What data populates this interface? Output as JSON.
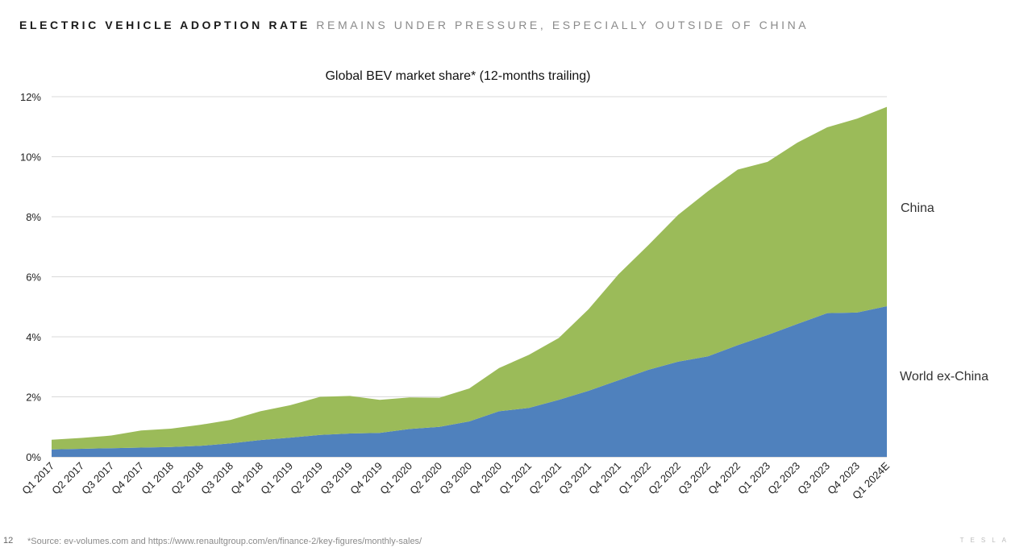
{
  "header": {
    "title_dark": "ELECTRIC VEHICLE ADOPTION RATE",
    "title_gray": "REMAINS UNDER PRESSURE, ESPECIALLY OUTSIDE OF CHINA"
  },
  "footer": {
    "page_number": "12",
    "source": "*Source: ev-volumes.com and https://www.renaultgroup.com/en/finance-2/key-figures/monthly-sales/",
    "brand": "TESLA"
  },
  "colors": {
    "china": "#9bbb59",
    "world_ex_china": "#4f81bd",
    "grid": "#d9d9d9",
    "text": "#222222"
  },
  "chart_data": {
    "type": "area",
    "stacked": true,
    "title": "Global BEV market share* (12-months trailing)",
    "xlabel": "",
    "ylabel": "",
    "ylim": [
      0,
      12
    ],
    "yticks": [
      0,
      2,
      4,
      6,
      8,
      10,
      12
    ],
    "ytick_labels": [
      "0%",
      "2%",
      "4%",
      "6%",
      "8%",
      "10%",
      "12%"
    ],
    "grid": true,
    "legend_position": "right, inline labels",
    "categories": [
      "Q1 2017",
      "Q2 2017",
      "Q3 2017",
      "Q4 2017",
      "Q1 2018",
      "Q2 2018",
      "Q3 2018",
      "Q4 2018",
      "Q1 2019",
      "Q2 2019",
      "Q3 2019",
      "Q4 2019",
      "Q1 2020",
      "Q2 2020",
      "Q3 2020",
      "Q4 2020",
      "Q1 2021",
      "Q2 2021",
      "Q3 2021",
      "Q4 2021",
      "Q1 2022",
      "Q2 2022",
      "Q3 2022",
      "Q4 2022",
      "Q1 2023",
      "Q2 2023",
      "Q3 2023",
      "Q4 2023",
      "Q1 2024E"
    ],
    "series": [
      {
        "name": "World ex-China",
        "label": "World ex-China",
        "values": [
          0.25,
          0.27,
          0.29,
          0.31,
          0.33,
          0.37,
          0.45,
          0.56,
          0.64,
          0.73,
          0.78,
          0.8,
          0.93,
          1.0,
          1.18,
          1.52,
          1.63,
          1.9,
          2.2,
          2.55,
          2.9,
          3.17,
          3.35,
          3.72,
          4.06,
          4.43,
          4.79,
          4.81,
          5.02
        ]
      },
      {
        "name": "China",
        "label": "China",
        "values": [
          0.32,
          0.36,
          0.42,
          0.57,
          0.61,
          0.7,
          0.78,
          0.96,
          1.08,
          1.27,
          1.25,
          1.1,
          1.05,
          0.97,
          1.1,
          1.44,
          1.77,
          2.06,
          2.72,
          3.53,
          4.15,
          4.89,
          5.5,
          5.85,
          5.77,
          6.04,
          6.19,
          6.46,
          6.64
        ]
      }
    ]
  }
}
